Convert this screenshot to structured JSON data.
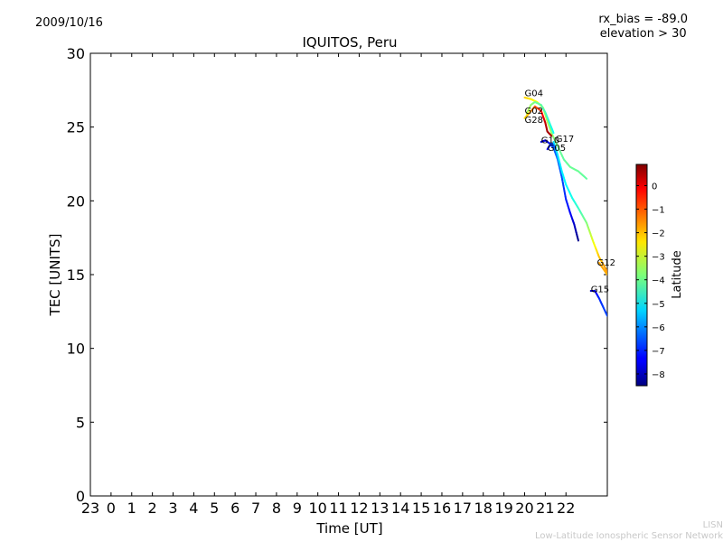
{
  "header": {
    "date": "2009/10/16",
    "bias_line": "rx_bias = -89.0",
    "elevation_line": "elevation > 30"
  },
  "footer": {
    "credit_short": "LISN",
    "credit_long": "Low-Latitude Ionospheric Sensor Network"
  },
  "chart_data": {
    "type": "scatter",
    "title": "IQUITOS, Peru",
    "xlabel": "Time [UT]",
    "ylabel": "TEC [UNITS]",
    "ylim": [
      0,
      30
    ],
    "yticks": [
      0,
      5,
      10,
      15,
      20,
      25,
      30
    ],
    "xlim": [
      -1,
      24
    ],
    "xticks": [
      {
        "v": -1,
        "label": "23"
      },
      {
        "v": 0,
        "label": "0"
      },
      {
        "v": 1,
        "label": "1"
      },
      {
        "v": 2,
        "label": "2"
      },
      {
        "v": 3,
        "label": "3"
      },
      {
        "v": 4,
        "label": "4"
      },
      {
        "v": 5,
        "label": "5"
      },
      {
        "v": 6,
        "label": "6"
      },
      {
        "v": 7,
        "label": "7"
      },
      {
        "v": 8,
        "label": "8"
      },
      {
        "v": 9,
        "label": "9"
      },
      {
        "v": 10,
        "label": "10"
      },
      {
        "v": 11,
        "label": "11"
      },
      {
        "v": 12,
        "label": "12"
      },
      {
        "v": 13,
        "label": "13"
      },
      {
        "v": 14,
        "label": "14"
      },
      {
        "v": 15,
        "label": "15"
      },
      {
        "v": 16,
        "label": "16"
      },
      {
        "v": 17,
        "label": "17"
      },
      {
        "v": 18,
        "label": "18"
      },
      {
        "v": 19,
        "label": "19"
      },
      {
        "v": 20,
        "label": "20"
      },
      {
        "v": 21,
        "label": "21"
      },
      {
        "v": 22,
        "label": "22"
      }
    ],
    "colorbar": {
      "label": "Latitude",
      "range": [
        -8.5,
        0.9
      ],
      "ticks": [
        0,
        -1,
        -2,
        -3,
        -4,
        -5,
        -6,
        -7,
        -8
      ],
      "tick_labels": [
        "0",
        "−1",
        "−2",
        "−3",
        "−4",
        "−5",
        "−6",
        "−7",
        "−8"
      ]
    },
    "series": [
      {
        "name": "G04",
        "label_at": [
          20.0,
          27.1
        ],
        "x": [
          20.0,
          20.3,
          20.6,
          20.9,
          21.1,
          21.3,
          21.6,
          21.9,
          22.2,
          22.6,
          23.0
        ],
        "y": [
          27.0,
          26.9,
          26.7,
          26.3,
          25.4,
          24.6,
          23.7,
          22.8,
          22.3,
          22.0,
          21.5
        ],
        "lat": [
          -2.2,
          -2.4,
          -2.7,
          -3.0,
          -3.3,
          -3.6,
          -3.9,
          -4.1,
          -4.0,
          -4.0,
          -4.1
        ]
      },
      {
        "name": "G02",
        "label_at": [
          20.0,
          25.9
        ],
        "x": [
          20.1,
          20.3,
          20.5,
          20.8,
          21.0,
          21.2,
          21.4
        ],
        "y": [
          25.9,
          26.5,
          26.7,
          26.5,
          26.0,
          25.3,
          24.6
        ],
        "lat": [
          -3.2,
          -3.6,
          -3.9,
          -4.1,
          -4.3,
          -4.6,
          -4.9
        ]
      },
      {
        "name": "G28",
        "label_at": [
          20.0,
          25.3
        ],
        "x": [
          20.0,
          20.2,
          20.5,
          20.8,
          21.0,
          21.1,
          21.3
        ],
        "y": [
          25.6,
          25.9,
          26.4,
          26.1,
          25.3,
          24.7,
          24.4
        ],
        "lat": [
          -2.4,
          -1.9,
          -1.1,
          -0.6,
          0.2,
          0.6,
          0.4
        ]
      },
      {
        "name": "G10",
        "label_at": [
          20.8,
          23.9
        ],
        "x": [
          20.8,
          21.0,
          21.2,
          21.4,
          21.6,
          21.8,
          22.0,
          22.2,
          22.4,
          22.6
        ],
        "y": [
          24.0,
          24.1,
          23.9,
          23.6,
          22.8,
          21.6,
          20.1,
          19.2,
          18.4,
          17.3
        ],
        "lat": [
          -7.8,
          -7.6,
          -7.1,
          -6.6,
          -6.3,
          -6.6,
          -7.0,
          -7.3,
          -7.8,
          -8.4
        ]
      },
      {
        "name": "G17",
        "label_at": [
          21.5,
          24.0
        ],
        "x": [
          21.4,
          21.6,
          21.8,
          22.0,
          22.3,
          22.6,
          23.0,
          23.3,
          23.6,
          24.0
        ],
        "y": [
          24.0,
          23.1,
          22.0,
          21.1,
          20.2,
          19.5,
          18.5,
          17.3,
          16.2,
          15.2
        ],
        "lat": [
          -5.3,
          -5.2,
          -5.1,
          -5.0,
          -4.8,
          -4.5,
          -3.8,
          -2.9,
          -2.1,
          -1.6
        ]
      },
      {
        "name": "G05",
        "label_at": [
          21.1,
          23.4
        ],
        "x": [
          21.1,
          21.3,
          21.5
        ],
        "y": [
          23.5,
          23.9,
          23.6
        ],
        "lat": [
          -7.3,
          -6.8,
          -6.3
        ]
      },
      {
        "name": "G12",
        "label_at": [
          23.5,
          15.6
        ],
        "x": [
          23.6,
          23.8,
          24.0
        ],
        "y": [
          15.8,
          15.4,
          15.0
        ],
        "lat": [
          -1.8,
          -1.8,
          -1.9
        ]
      },
      {
        "name": "G15",
        "label_at": [
          23.2,
          13.8
        ],
        "x": [
          23.2,
          23.4,
          23.6,
          23.8,
          24.0
        ],
        "y": [
          13.9,
          13.9,
          13.4,
          12.8,
          12.2
        ],
        "lat": [
          -8.0,
          -7.5,
          -7.0,
          -6.8,
          -6.7
        ]
      }
    ]
  }
}
